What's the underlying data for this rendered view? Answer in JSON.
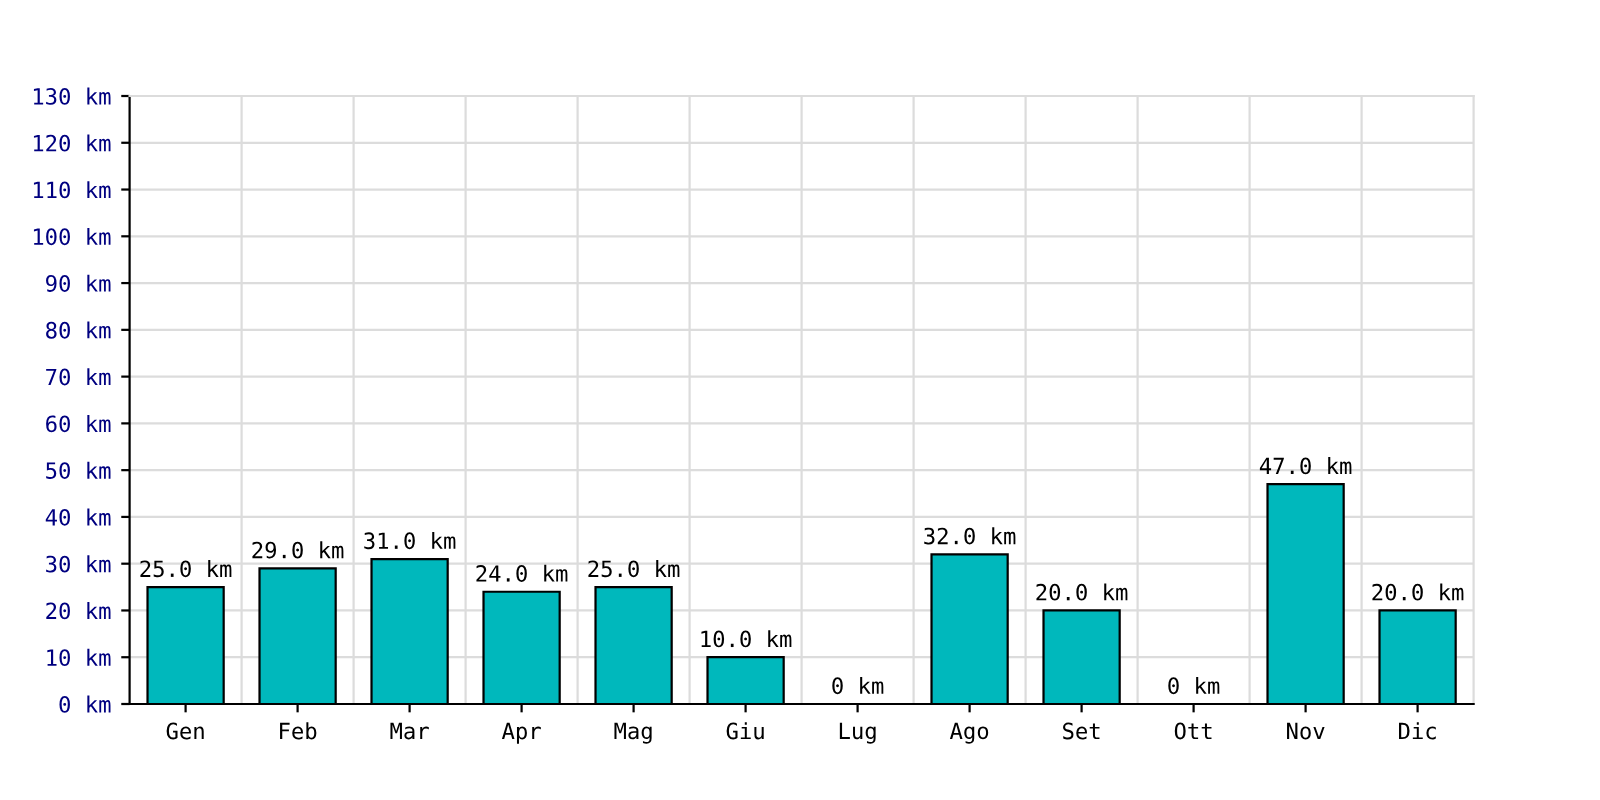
{
  "chart_data": {
    "type": "bar",
    "categories": [
      "Gen",
      "Feb",
      "Mar",
      "Apr",
      "Mag",
      "Giu",
      "Lug",
      "Ago",
      "Set",
      "Ott",
      "Nov",
      "Dic"
    ],
    "values": [
      25,
      29,
      31,
      24,
      25,
      10,
      0,
      32,
      20,
      0,
      47,
      20
    ],
    "value_labels": [
      "25.0 km",
      "29.0 km",
      "31.0 km",
      "24.0 km",
      "25.0 km",
      "10.0 km",
      "0 km",
      "32.0 km",
      "20.0 km",
      "0 km",
      "47.0 km",
      "20.0 km"
    ],
    "color": "#00b8bc",
    "ylim": [
      0,
      130
    ],
    "yticks": [
      {
        "value": 0,
        "label": "0 km"
      },
      {
        "value": 10,
        "label": "10 km"
      },
      {
        "value": 20,
        "label": "20 km"
      },
      {
        "value": 30,
        "label": "30 km"
      },
      {
        "value": 40,
        "label": "40 km"
      },
      {
        "value": 50,
        "label": "50 km"
      },
      {
        "value": 60,
        "label": "60 km"
      },
      {
        "value": 70,
        "label": "70 km"
      },
      {
        "value": 80,
        "label": "80 km"
      },
      {
        "value": 90,
        "label": "90 km"
      },
      {
        "value": 100,
        "label": "100 km"
      },
      {
        "value": 110,
        "label": "110 km"
      },
      {
        "value": 120,
        "label": "120 km"
      },
      {
        "value": 130,
        "label": "130 km"
      }
    ],
    "grid": true
  }
}
